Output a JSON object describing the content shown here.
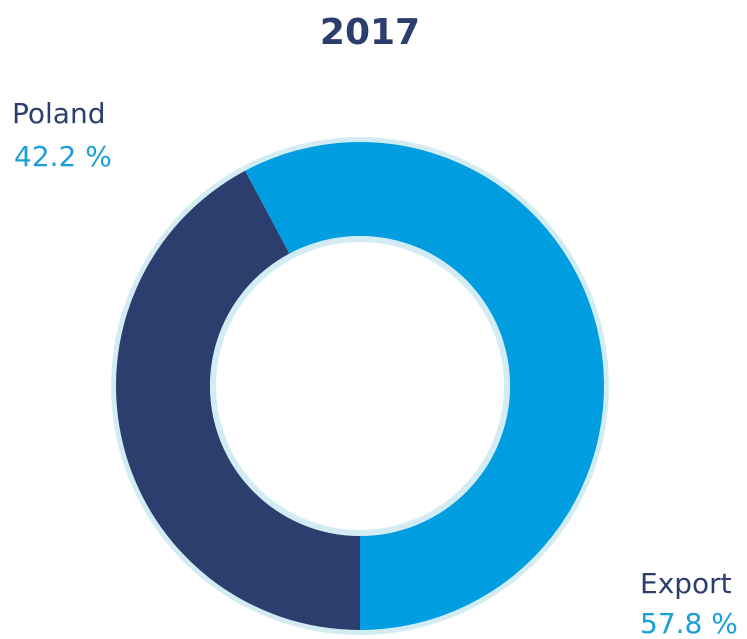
{
  "chart_data": {
    "type": "donut",
    "title": "2017",
    "categories": [
      "Poland",
      "Export"
    ],
    "values": [
      42.2,
      57.8
    ],
    "value_labels": [
      "42.2 %",
      "57.8 %"
    ],
    "colors": [
      "#2c3e6e",
      "#009ee0"
    ]
  }
}
